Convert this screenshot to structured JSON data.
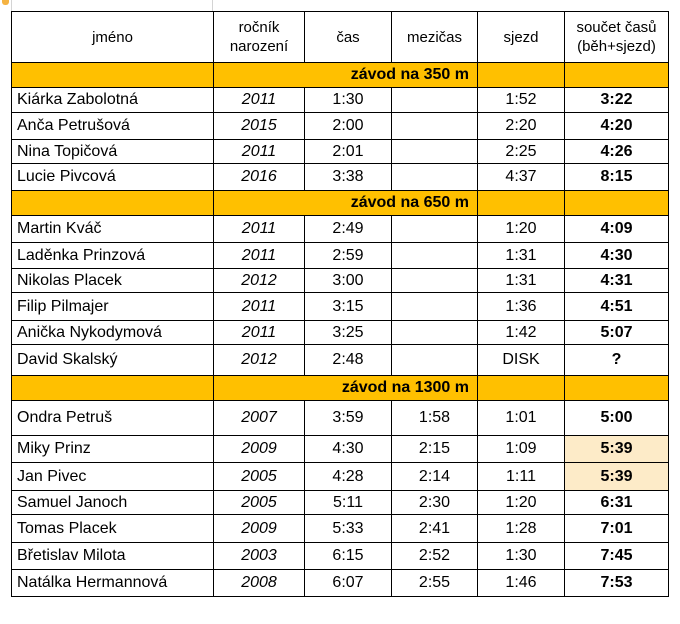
{
  "headers": {
    "name": "jméno",
    "birth": "ročník\nnarození",
    "time": "čas",
    "split": "mezičas",
    "descent": "sjezd",
    "total": "součet časů\n(běh+sjezd)"
  },
  "sections": [
    {
      "title": "závod na 350 m",
      "rows": [
        {
          "name": "Kiárka Zabolotná",
          "year": "2011",
          "time": "1:30",
          "split": "",
          "descent": "1:52",
          "total": "3:22"
        },
        {
          "name": "Anča Petrušová",
          "year": "2015",
          "time": "2:00",
          "split": "",
          "descent": "2:20",
          "total": "4:20"
        },
        {
          "name": "Nina Topičová",
          "year": "2011",
          "time": "2:01",
          "split": "",
          "descent": "2:25",
          "total": "4:26"
        },
        {
          "name": "Lucie Pivcová",
          "year": "2016",
          "time": "3:38",
          "split": "",
          "descent": "4:37",
          "total": "8:15"
        }
      ]
    },
    {
      "title": "závod na 650 m",
      "rows": [
        {
          "name": "Martin Kváč",
          "year": "2011",
          "time": "2:49",
          "split": "",
          "descent": "1:20",
          "total": "4:09"
        },
        {
          "name": "Laděnka Prinzová",
          "year": "2011",
          "time": "2:59",
          "split": "",
          "descent": "1:31",
          "total": "4:30"
        },
        {
          "name": "Nikolas Placek",
          "year": "2012",
          "time": "3:00",
          "split": "",
          "descent": "1:31",
          "total": "4:31"
        },
        {
          "name": "Filip Pilmajer",
          "year": "2011",
          "time": "3:15",
          "split": "",
          "descent": "1:36",
          "total": "4:51"
        },
        {
          "name": "Anička Nykodymová",
          "year": "2011",
          "time": "3:25",
          "split": "",
          "descent": "1:42",
          "total": "5:07"
        },
        {
          "name": "David Skalský",
          "year": "2012",
          "time": "2:48",
          "split": "",
          "descent": "DISK",
          "total": "?"
        }
      ]
    },
    {
      "title": "závod na 1300 m",
      "rows": [
        {
          "name": "Ondra Petruš",
          "year": "2007",
          "time": "3:59",
          "split": "1:58",
          "descent": "1:01",
          "total": "5:00"
        },
        {
          "name": "Miky Prinz",
          "year": "2009",
          "time": "4:30",
          "split": "2:15",
          "descent": "1:09",
          "total": "5:39",
          "highlight": true
        },
        {
          "name": "Jan Pivec",
          "year": "2005",
          "time": "4:28",
          "split": "2:14",
          "descent": "1:11",
          "total": "5:39",
          "highlight": true
        },
        {
          "name": "Samuel Janoch",
          "year": "2005",
          "time": "5:11",
          "split": "2:30",
          "descent": "1:20",
          "total": "6:31"
        },
        {
          "name": "Tomas Placek",
          "year": "2009",
          "time": "5:33",
          "split": "2:41",
          "descent": "1:28",
          "total": "7:01"
        },
        {
          "name": "Břetislav Milota",
          "year": "2003",
          "time": "6:15",
          "split": "2:52",
          "descent": "1:30",
          "total": "7:45"
        },
        {
          "name": "Natálka Hermannová",
          "year": "2008",
          "time": "6:07",
          "split": "2:55",
          "descent": "1:46",
          "total": "7:53"
        }
      ]
    }
  ],
  "colors": {
    "section_fill": "#ffc000",
    "tie_highlight": "#fdebc8"
  }
}
